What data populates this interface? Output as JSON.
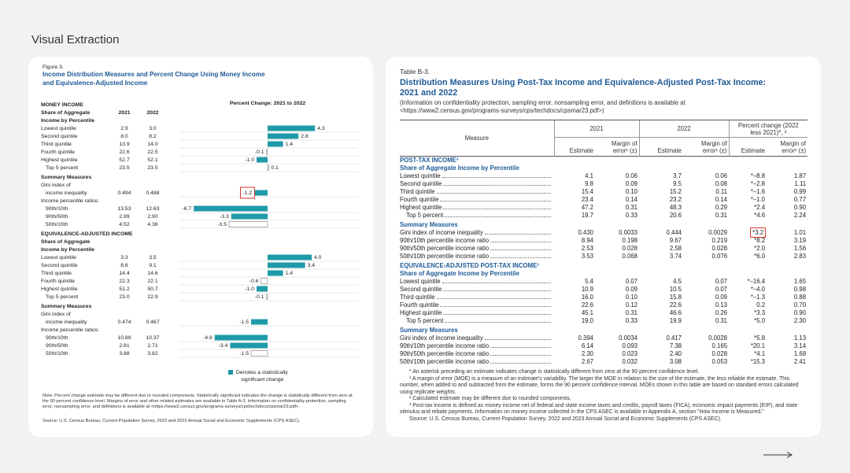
{
  "header": {
    "title": "Visual Extraction"
  },
  "figure": {
    "label": "Figure 3.",
    "title_lines": [
      "Income Distribution Measures and Percent Change Using Money Income",
      "and Equivalence-Adjusted Income"
    ],
    "chart_title": "Percent Change: 2021 to 2022",
    "bar_color": "#1f9aa8",
    "rows": [
      {
        "label": "MONEY INCOME",
        "style": "heading"
      },
      {
        "label": "Share of Aggregate",
        "style": "sub",
        "values": [
          "2021",
          "2022"
        ]
      },
      {
        "label": "Income by Percentile",
        "style": "sub"
      },
      {
        "label": "Lowest quintile",
        "values": [
          "2.9",
          "3.0"
        ],
        "change": 4.3,
        "change_label": "4.3",
        "significant": true
      },
      {
        "label": "Second quintile",
        "values": [
          "8.0",
          "8.2"
        ],
        "change": 2.8,
        "change_label": "2.8",
        "significant": true
      },
      {
        "label": "Third quintile",
        "values": [
          "13.9",
          "14.0"
        ],
        "change": 1.4,
        "change_label": "1.4",
        "significant": true
      },
      {
        "label": "Fourth quintile",
        "values": [
          "22.6",
          "22.5"
        ],
        "change": -0.1,
        "change_label": "-0.1",
        "significant": false
      },
      {
        "label": "Highest quintile",
        "values": [
          "52.7",
          "52.1"
        ],
        "change": -1.0,
        "change_label": "-1.0",
        "significant": true
      },
      {
        "label": "Top 5 percent",
        "style": "indent",
        "values": [
          "23.5",
          "23.5"
        ],
        "change": 0.1,
        "change_label": "0.1",
        "significant": false
      },
      {
        "label": "Summary Measures",
        "style": "sub"
      },
      {
        "label": "Gini index of"
      },
      {
        "label": "income inequality",
        "style": "indent",
        "values": [
          "0.494",
          "0.488"
        ],
        "change": -1.2,
        "change_label": "-1.2",
        "significant": true,
        "highlight": true
      },
      {
        "label": "Income percentile ratios:"
      },
      {
        "label": "90th/10th",
        "style": "indent",
        "values": [
          "13.53",
          "12.63"
        ],
        "change": -6.7,
        "change_label": "-6.7",
        "significant": true
      },
      {
        "label": "90th/50th",
        "style": "indent",
        "values": [
          "2.99",
          "2.90"
        ],
        "change": -3.3,
        "change_label": "-3.3",
        "significant": true
      },
      {
        "label": "50th/10th",
        "style": "indent",
        "values": [
          "4.52",
          "4.36"
        ],
        "change": -3.5,
        "change_label": "-3.5",
        "significant": false
      },
      {
        "label": "EQUIVALENCE-ADJUSTED INCOME",
        "style": "heading"
      },
      {
        "label": "Share of Aggregate",
        "style": "sub"
      },
      {
        "label": "Income by Percentile",
        "style": "sub"
      },
      {
        "label": "Lowest quintile",
        "values": [
          "3.3",
          "3.5"
        ],
        "change": 4.0,
        "change_label": "4.0",
        "significant": true
      },
      {
        "label": "Second quintile",
        "values": [
          "8.8",
          "9.1"
        ],
        "change": 3.4,
        "change_label": "3.4",
        "significant": true
      },
      {
        "label": "Third quintile",
        "values": [
          "14.4",
          "14.6"
        ],
        "change": 1.4,
        "change_label": "1.4",
        "significant": true
      },
      {
        "label": "Fourth quintile",
        "values": [
          "22.3",
          "22.1"
        ],
        "change": -0.6,
        "change_label": "-0.6",
        "significant": false
      },
      {
        "label": "Highest quintile",
        "values": [
          "51.2",
          "50.7"
        ],
        "change": -1.0,
        "change_label": "-1.0",
        "significant": true
      },
      {
        "label": "Top 5 percent",
        "style": "indent",
        "values": [
          "23.0",
          "22.9"
        ],
        "change": -0.1,
        "change_label": "-0.1",
        "significant": false
      },
      {
        "label": "Summary Measures",
        "style": "sub"
      },
      {
        "label": "Gini index of"
      },
      {
        "label": "income inequality",
        "style": "indent",
        "values": [
          "0.474",
          "0.467"
        ],
        "change": -1.5,
        "change_label": "-1.5",
        "significant": true
      },
      {
        "label": "Income percentile ratios:"
      },
      {
        "label": "90th/10th",
        "style": "indent",
        "values": [
          "10.89",
          "10.37"
        ],
        "change": -4.8,
        "change_label": "-4.8",
        "significant": true
      },
      {
        "label": "90th/50th",
        "style": "indent",
        "values": [
          "2.81",
          "2.71"
        ],
        "change": -3.4,
        "change_label": "-3.4",
        "significant": true
      },
      {
        "label": "50th/10th",
        "style": "indent",
        "values": [
          "3.88",
          "3.82"
        ],
        "change": -1.5,
        "change_label": "-1.5",
        "significant": false
      }
    ],
    "legend_lines": [
      "Denotes a statistically",
      "significant change"
    ],
    "note": "Note: Percent change estimate may be different due to rounded components. Statistically significant indicates the change is statistically different from zero at the 90 percent confidence level. Margins of error and other related estimates are available in Table A-3. Information on confidentiality protection, sampling error, nonsampling error, and definitions is available at <https://www2.census.gov/programs-surveys/cps/techdocs/cpsmar23.pdf>.",
    "source": "Source: U.S. Census Bureau, Current Population Survey, 2022 and 2023 Annual Social and Economic Supplements (CPS ASEC)."
  },
  "table": {
    "label": "Table B-3.",
    "title": "Distribution Measures Using Post-Tax Income and Equivalence-Adjusted Post-Tax Income: 2021 and 2022",
    "note": "(Information on confidentiality protection, sampling error, nonsampling error, and definitions is available at <https://www2.census.gov/programs-surveys/cps/techdocs/cpsmar23.pdf>)",
    "header": {
      "measure": "Measure",
      "groups": [
        "2021",
        "2022",
        "Percent change (2022 less 2021)*, ²"
      ],
      "sub": [
        "Estimate",
        "Margin of error¹ (±)",
        "Estimate",
        "Margin of error¹ (±)",
        "Estimate",
        "Margin of error¹ (±)"
      ]
    },
    "rows": [
      {
        "label": "POST-TAX INCOME³",
        "style": "section"
      },
      {
        "label": "Share of Aggregate Income by Percentile",
        "style": "section"
      },
      {
        "label": "Lowest quintile",
        "cells": [
          "4.1",
          "0.06",
          "3.7",
          "0.06",
          "*–8.8",
          "1.87"
        ]
      },
      {
        "label": "Second quintile",
        "cells": [
          "9.8",
          "0.09",
          "9.5",
          "0.08",
          "*–2.8",
          "1.11"
        ]
      },
      {
        "label": "Third quintile",
        "cells": [
          "15.4",
          "0.10",
          "15.2",
          "0.11",
          "*–1.6",
          "0.99"
        ]
      },
      {
        "label": "Fourth quintile",
        "cells": [
          "23.4",
          "0.14",
          "23.2",
          "0.14",
          "*–1.0",
          "0.77"
        ]
      },
      {
        "label": "Highest quintile",
        "cells": [
          "47.2",
          "0.31",
          "48.3",
          "0.29",
          "*2.4",
          "0.90"
        ]
      },
      {
        "label": "Top 5 percent",
        "style": "indent",
        "cells": [
          "19.7",
          "0.33",
          "20.6",
          "0.31",
          "*4.6",
          "2.24"
        ]
      },
      {
        "label": "Summary Measures",
        "style": "section"
      },
      {
        "label": "Gini index of income inequality",
        "cells": [
          "0.430",
          "0.0033",
          "0.444",
          "0.0029",
          "*3.2",
          "1.01"
        ],
        "highlight": 4
      },
      {
        "label": "90th/10th percentile income ratio",
        "cells": [
          "8.94",
          "0.198",
          "9.67",
          "0.219",
          "*8.2",
          "3.19"
        ]
      },
      {
        "label": "90th/50th percentile income ratio",
        "cells": [
          "2.53",
          "0.028",
          "2.58",
          "0.028",
          "*2.0",
          "1.56"
        ]
      },
      {
        "label": "50th/10th percentile income ratio",
        "cells": [
          "3.53",
          "0.068",
          "3.74",
          "0.076",
          "*6.0",
          "2.83"
        ]
      },
      {
        "label": "EQUIVALENCE-ADJUSTED POST-TAX INCOME³",
        "style": "section"
      },
      {
        "label": "Share of Aggregate Income by Percentile",
        "style": "section"
      },
      {
        "label": "Lowest quintile",
        "cells": [
          "5.4",
          "0.07",
          "4.5",
          "0.07",
          "*–16.4",
          "1.65"
        ]
      },
      {
        "label": "Second quintile",
        "cells": [
          "10.9",
          "0.09",
          "10.5",
          "0.07",
          "*–4.0",
          "0.98"
        ]
      },
      {
        "label": "Third quintile",
        "cells": [
          "16.0",
          "0.10",
          "15.8",
          "0.09",
          "*–1.3",
          "0.88"
        ]
      },
      {
        "label": "Fourth quintile",
        "cells": [
          "22.6",
          "0.12",
          "22.6",
          "0.13",
          "0.2",
          "0.70"
        ]
      },
      {
        "label": "Highest quintile",
        "cells": [
          "45.1",
          "0.31",
          "46.6",
          "0.26",
          "*3.3",
          "0.90"
        ]
      },
      {
        "label": "Top 5 percent",
        "style": "indent",
        "cells": [
          "19.0",
          "0.33",
          "19.9",
          "0.31",
          "*5.0",
          "2.30"
        ]
      },
      {
        "label": "Summary Measures",
        "style": "section"
      },
      {
        "label": "Gini index of income inequality",
        "cells": [
          "0.394",
          "0.0034",
          "0.417",
          "0.0028",
          "*5.8",
          "1.13"
        ]
      },
      {
        "label": "90th/10th percentile income ratio",
        "cells": [
          "6.14",
          "0.093",
          "7.38",
          "0.165",
          "*20.1",
          "3.14"
        ]
      },
      {
        "label": "90th/50th percentile income ratio",
        "cells": [
          "2.30",
          "0.023",
          "2.40",
          "0.028",
          "*4.1",
          "1.68"
        ]
      },
      {
        "label": "50th/10th percentile income ratio",
        "cells": [
          "2.67",
          "0.032",
          "3.08",
          "0.053",
          "*15.3",
          "2.41"
        ]
      }
    ],
    "footnotes": [
      "* An asterisk preceding an estimate indicates change is statistically different from zero at the 90 percent confidence level.",
      "¹ A margin of error (MOE) is a measure of an estimate's variability. The larger the MOE in relation to the size of the estimate, the less reliable the estimate. This number, when added to and subtracted from the estimate, forms the 90 percent confidence interval. MOEs shown in this table are based on standard errors calculated using replicate weights.",
      "² Calculated estimate may be different due to rounded components.",
      "³ Post-tax income is defined as money income net of federal and state income taxes and credits, payroll taxes (FICA), economic impact payments (EIP), and state stimulus and rebate payments. Information on money income collected in the CPS ASEC is available in Appendix A, section \"How Income is Measured.\""
    ],
    "source": "Source: U.S. Census Bureau, Current Population Survey, 2022 and 2023 Annual Social and Economic Supplements (CPS ASEC)."
  }
}
